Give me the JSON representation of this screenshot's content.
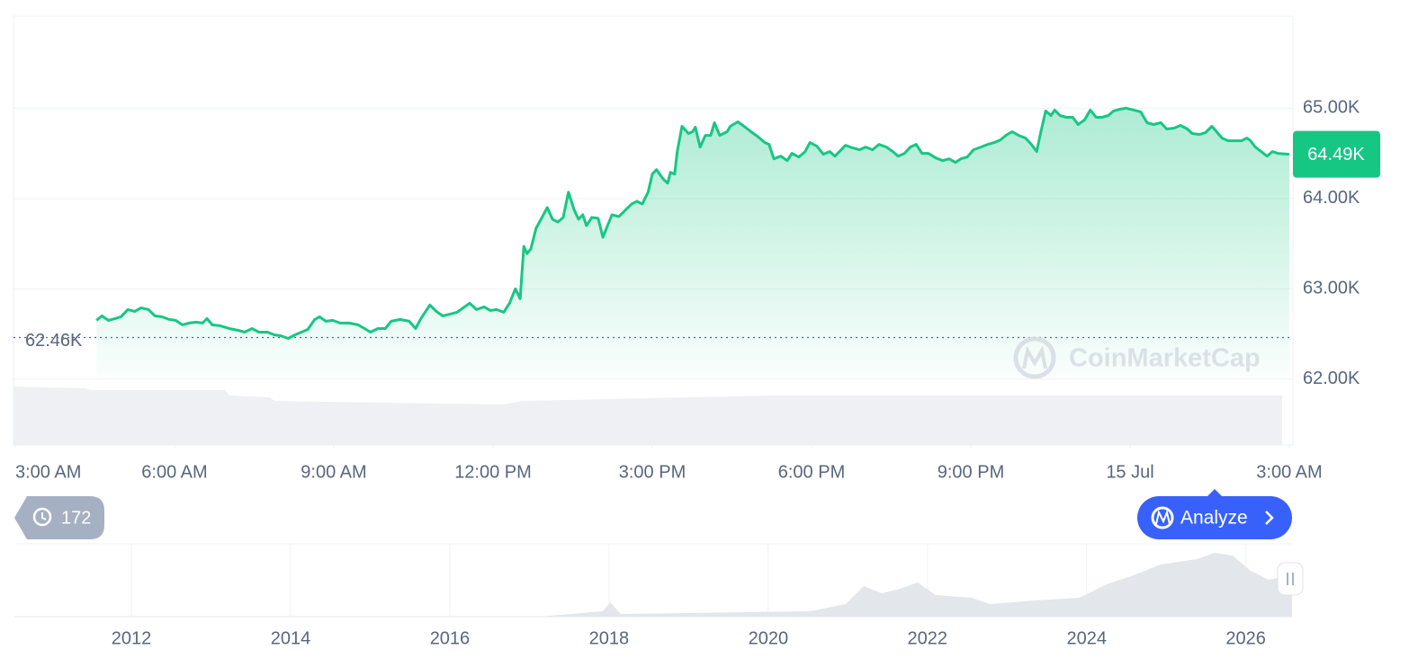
{
  "chart_data": {
    "type": "line",
    "color": "#16c784",
    "grid": true,
    "xlim": [
      0,
      24
    ],
    "xticks": [
      {
        "value": 0,
        "label": "3:00 AM"
      },
      {
        "value": 3,
        "label": "6:00 AM"
      },
      {
        "value": 6,
        "label": "9:00 AM"
      },
      {
        "value": 9,
        "label": "12:00 PM"
      },
      {
        "value": 12,
        "label": "3:00 PM"
      },
      {
        "value": 15,
        "label": "6:00 PM"
      },
      {
        "value": 18,
        "label": "9:00 PM"
      },
      {
        "value": 21,
        "label": "15 Jul"
      },
      {
        "value": 24,
        "label": "3:00 AM"
      }
    ],
    "ylim": [
      61270,
      66020
    ],
    "yticks": [
      {
        "value": 62000,
        "label": "62.00K"
      },
      {
        "value": 63000,
        "label": "63.00K"
      },
      {
        "value": 64000,
        "label": "64.00K"
      },
      {
        "value": 65000,
        "label": "65.00K"
      }
    ],
    "last_price": {
      "value": 64490,
      "label": "64.49K"
    },
    "open_price": {
      "value": 62460,
      "label": "62.46K"
    },
    "x": [
      1.53,
      1.63,
      1.75,
      1.88,
      1.99,
      2.12,
      2.25,
      2.37,
      2.51,
      2.63,
      2.76,
      2.9,
      3.02,
      3.15,
      3.27,
      3.41,
      3.53,
      3.61,
      3.71,
      3.86,
      4.03,
      4.2,
      4.32,
      4.46,
      4.59,
      4.75,
      4.88,
      5.0,
      5.14,
      5.27,
      5.39,
      5.51,
      5.64,
      5.73,
      5.85,
      5.98,
      6.12,
      6.29,
      6.46,
      6.58,
      6.69,
      6.83,
      6.97,
      7.08,
      7.25,
      7.42,
      7.54,
      7.64,
      7.81,
      7.93,
      8.05,
      8.19,
      8.32,
      8.44,
      8.56,
      8.69,
      8.83,
      8.95,
      9.07,
      9.2,
      9.31,
      9.42,
      9.51,
      9.58,
      9.64,
      9.71,
      9.81,
      9.93,
      10.02,
      10.12,
      10.22,
      10.32,
      10.42,
      10.53,
      10.61,
      10.69,
      10.76,
      10.86,
      10.98,
      11.07,
      11.17,
      11.24,
      11.37,
      11.49,
      11.61,
      11.71,
      11.81,
      11.92,
      12.0,
      12.08,
      12.2,
      12.29,
      12.34,
      12.42,
      12.47,
      12.56,
      12.68,
      12.76,
      12.81,
      12.9,
      13.0,
      13.1,
      13.17,
      13.27,
      13.41,
      13.47,
      13.61,
      13.75,
      13.86,
      13.98,
      14.12,
      14.2,
      14.29,
      14.42,
      14.54,
      14.63,
      14.76,
      14.88,
      14.97,
      15.1,
      15.22,
      15.34,
      15.44,
      15.56,
      15.64,
      15.78,
      15.9,
      16.02,
      16.15,
      16.27,
      16.41,
      16.53,
      16.63,
      16.75,
      16.86,
      16.97,
      17.08,
      17.2,
      17.34,
      17.47,
      17.59,
      17.71,
      17.81,
      17.93,
      18.05,
      18.19,
      18.32,
      18.44,
      18.56,
      18.66,
      18.78,
      18.9,
      19.03,
      19.14,
      19.24,
      19.32,
      19.41,
      19.51,
      19.58,
      19.68,
      19.8,
      19.92,
      20.02,
      20.14,
      20.25,
      20.36,
      20.47,
      20.59,
      20.69,
      20.81,
      20.93,
      21.07,
      21.2,
      21.32,
      21.44,
      21.58,
      21.69,
      21.83,
      21.95,
      22.08,
      22.17,
      22.31,
      22.42,
      22.54,
      22.63,
      22.73,
      22.85,
      22.97,
      23.1,
      23.2,
      23.27,
      23.36,
      23.47,
      23.58,
      23.68,
      23.78,
      24.0
    ],
    "values": [
      62650,
      62700,
      62650,
      62670,
      62690,
      62770,
      62750,
      62790,
      62770,
      62700,
      62690,
      62660,
      62650,
      62600,
      62620,
      62630,
      62620,
      62670,
      62600,
      62590,
      62560,
      62540,
      62520,
      62560,
      62520,
      62520,
      62490,
      62480,
      62450,
      62490,
      62520,
      62550,
      62660,
      62690,
      62640,
      62650,
      62620,
      62620,
      62600,
      62560,
      62520,
      62560,
      62560,
      62640,
      62660,
      62640,
      62560,
      62670,
      62820,
      62750,
      62700,
      62720,
      62740,
      62790,
      62840,
      62770,
      62800,
      62760,
      62770,
      62740,
      62840,
      63000,
      62890,
      63470,
      63390,
      63440,
      63670,
      63800,
      63900,
      63770,
      63740,
      63790,
      64070,
      63870,
      63770,
      63820,
      63700,
      63790,
      63780,
      63570,
      63720,
      63820,
      63800,
      63870,
      63940,
      63970,
      63940,
      64070,
      64270,
      64320,
      64220,
      64170,
      64290,
      64270,
      64520,
      64800,
      64720,
      64740,
      64790,
      64570,
      64700,
      64700,
      64840,
      64700,
      64740,
      64800,
      64850,
      64790,
      64740,
      64690,
      64620,
      64600,
      64440,
      64470,
      64420,
      64500,
      64460,
      64520,
      64620,
      64580,
      64490,
      64520,
      64470,
      64540,
      64590,
      64560,
      64540,
      64570,
      64540,
      64600,
      64570,
      64520,
      64470,
      64500,
      64570,
      64600,
      64500,
      64500,
      64450,
      64420,
      64440,
      64400,
      64440,
      64460,
      64540,
      64570,
      64600,
      64620,
      64650,
      64700,
      64740,
      64700,
      64670,
      64600,
      64520,
      64740,
      64970,
      64920,
      64980,
      64920,
      64900,
      64900,
      64820,
      64870,
      64980,
      64900,
      64900,
      64920,
      64970,
      64990,
      65000,
      64980,
      64960,
      64840,
      64820,
      64840,
      64770,
      64780,
      64810,
      64770,
      64720,
      64710,
      64730,
      64800,
      64740,
      64670,
      64640,
      64640,
      64640,
      64670,
      64640,
      64570,
      64520,
      64470,
      64520,
      64500,
      64490
    ]
  },
  "navigator": {
    "xlim": [
      2010.53,
      2026.58
    ],
    "xticks": [
      2012,
      2014,
      2016,
      2018,
      2020,
      2022,
      2024,
      2026
    ]
  },
  "ui": {
    "watermark": "CoinMarketCap",
    "history_count": 172,
    "analyze_button": "Analyze"
  }
}
